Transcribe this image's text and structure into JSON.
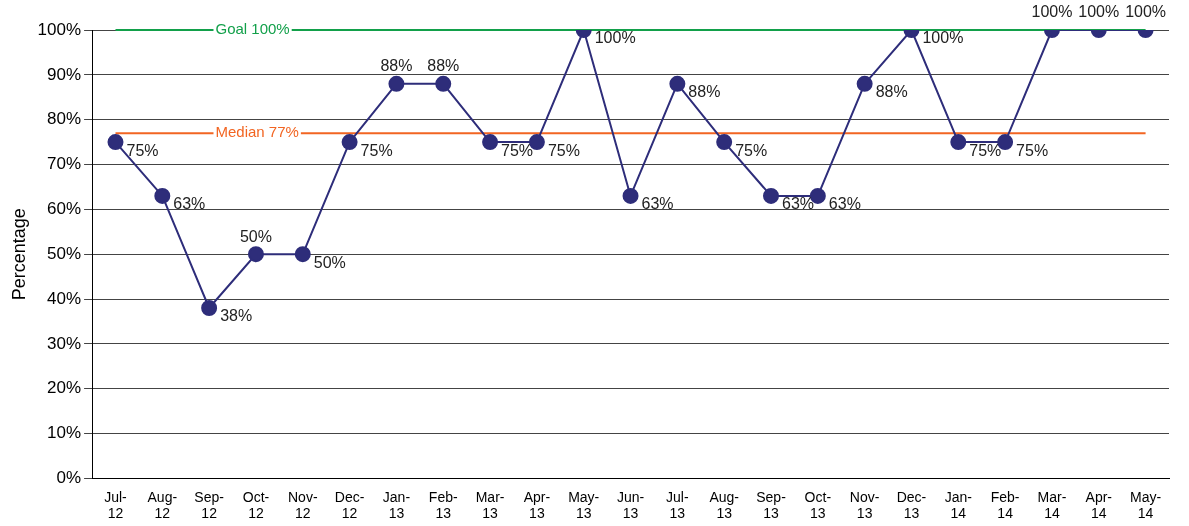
{
  "chart_data": {
    "type": "line",
    "ylabel": "Percentage",
    "categories": [
      "Jul-12",
      "Aug-12",
      "Sep-12",
      "Oct-12",
      "Nov-12",
      "Dec-12",
      "Jan-13",
      "Feb-13",
      "Mar-13",
      "Apr-13",
      "May-13",
      "Jun-13",
      "Jul-13",
      "Aug-13",
      "Sep-13",
      "Oct-13",
      "Nov-13",
      "Dec-13",
      "Jan-14",
      "Feb-14",
      "Mar-14",
      "Apr-14",
      "May-14"
    ],
    "series": [
      {
        "color": "#2e2d7a",
        "values": [
          75,
          63,
          38,
          50,
          50,
          75,
          88,
          88,
          75,
          75,
          100,
          63,
          88,
          75,
          63,
          63,
          88,
          100,
          75,
          75,
          100,
          100,
          100
        ],
        "value_labels": [
          "75%",
          "63%",
          "38%",
          "50%",
          "50%",
          "75%",
          "88%",
          "88%",
          "75%",
          "75%",
          "100%",
          "63%",
          "88%",
          "75%",
          "63%",
          "63%",
          "88%",
          "100%",
          "75%",
          "75%",
          "100%",
          "100%",
          "100%"
        ]
      }
    ],
    "ylim": [
      0,
      100
    ],
    "yticks": [
      {
        "value": 0,
        "label": "0%"
      },
      {
        "value": 10,
        "label": "10%"
      },
      {
        "value": 20,
        "label": "20%"
      },
      {
        "value": 30,
        "label": "30%"
      },
      {
        "value": 40,
        "label": "40%"
      },
      {
        "value": 50,
        "label": "50%"
      },
      {
        "value": 60,
        "label": "60%"
      },
      {
        "value": 70,
        "label": "70%"
      },
      {
        "value": 80,
        "label": "80%"
      },
      {
        "value": 90,
        "label": "90%"
      },
      {
        "value": 100,
        "label": "100%"
      }
    ],
    "ref_lines": [
      {
        "axis": "y",
        "value": 100,
        "label": "Goal 100%",
        "color": "#12a04a"
      },
      {
        "axis": "y",
        "value": 77,
        "label": "Median 77%",
        "color": "#f26522"
      }
    ],
    "grid": "y",
    "legend": false,
    "marker": "circle",
    "line_style": "solid"
  }
}
